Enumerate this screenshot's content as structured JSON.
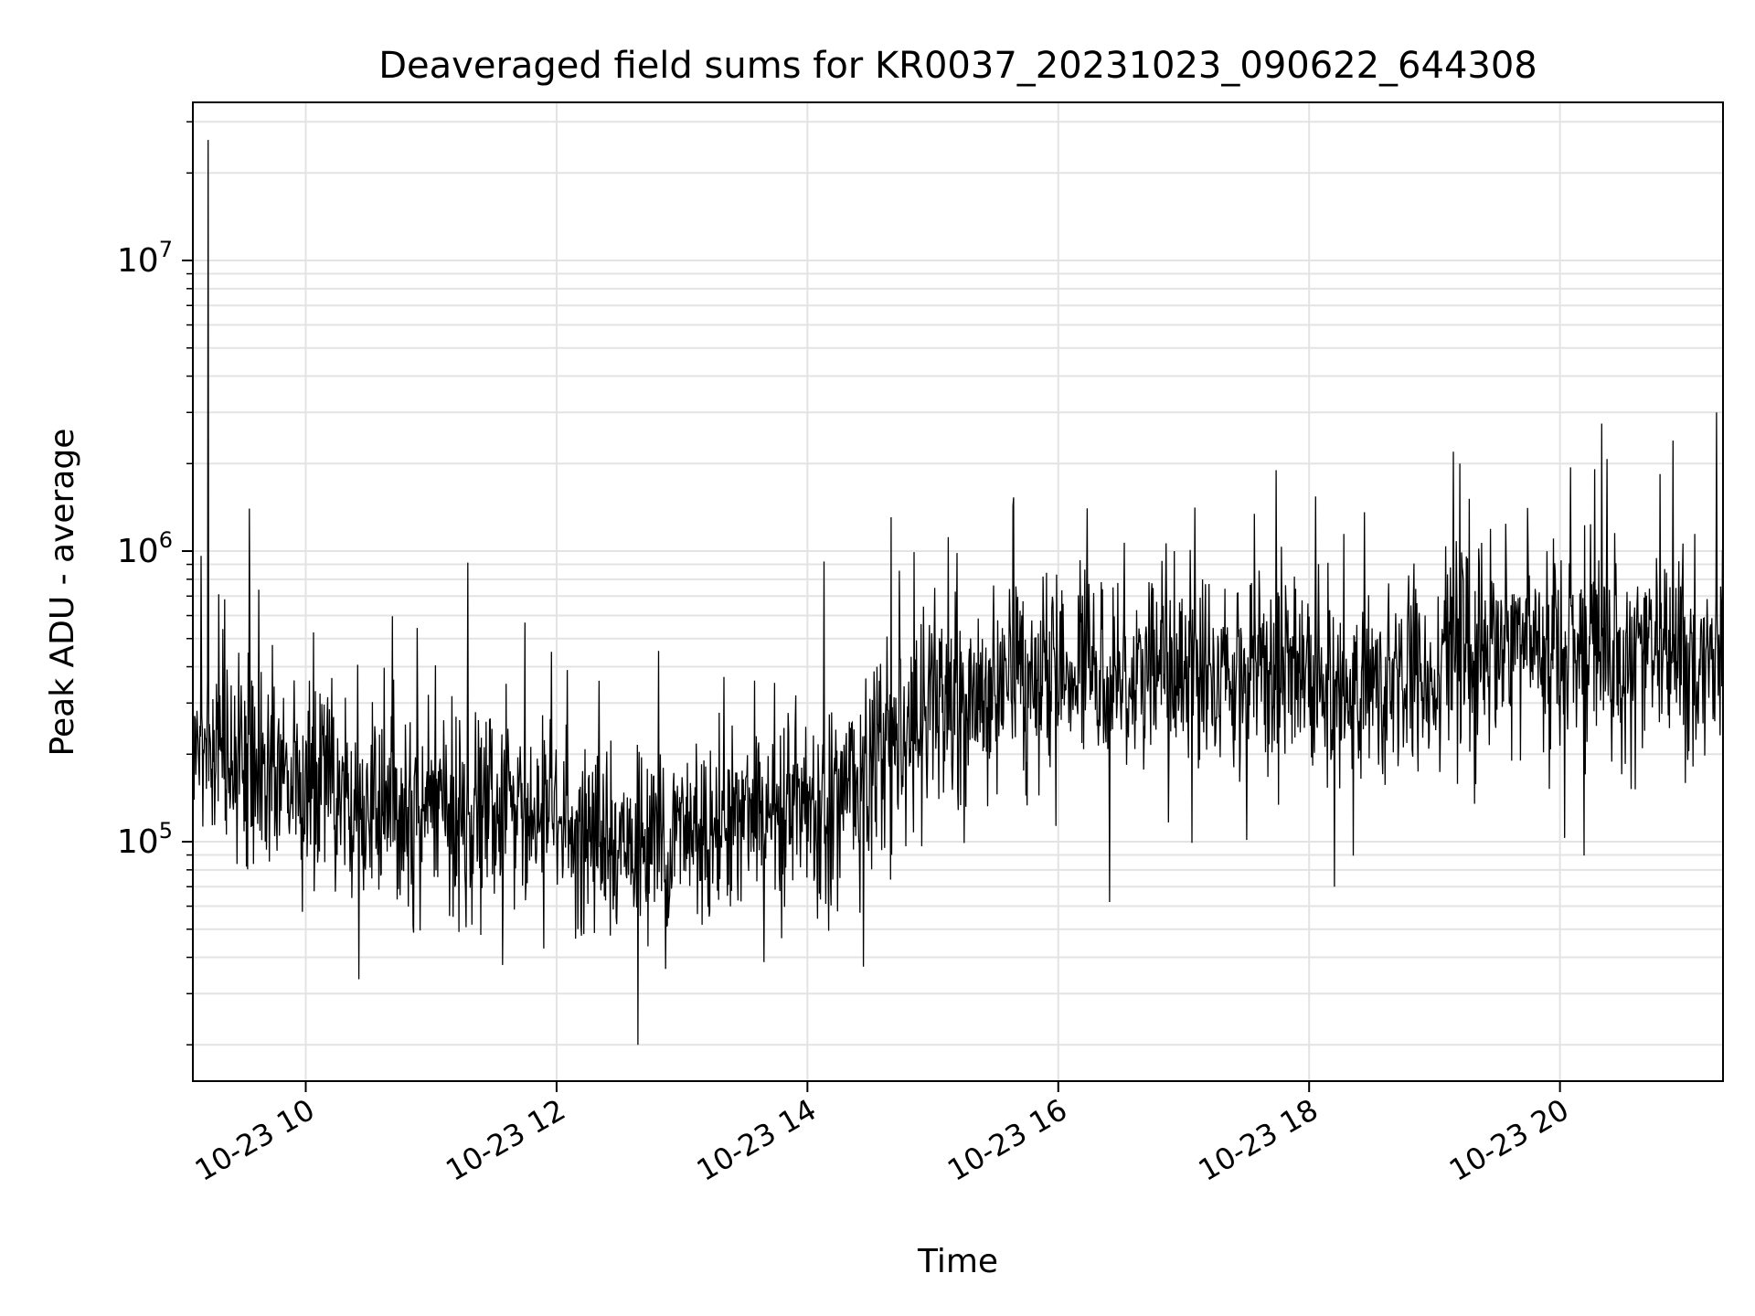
{
  "chart_data": {
    "type": "line",
    "title": "Deaveraged field sums for KR0037_20231023_090622_644308",
    "xlabel": "Time",
    "ylabel": "Peak ADU - average",
    "yscale": "log",
    "ylim": [
      15000,
      35000000
    ],
    "xlim_hours": [
      9.1,
      21.3
    ],
    "grid": true,
    "line_color": "#000000",
    "grid_color": "#e3e3e3",
    "x_ticks": [
      {
        "hour": 10,
        "label": "10-23 10"
      },
      {
        "hour": 12,
        "label": "10-23 12"
      },
      {
        "hour": 14,
        "label": "10-23 14"
      },
      {
        "hour": 16,
        "label": "10-23 16"
      },
      {
        "hour": 18,
        "label": "10-23 18"
      },
      {
        "hour": 20,
        "label": "10-23 20"
      }
    ],
    "y_ticks": [
      {
        "value": 100000,
        "base": "10",
        "exp": "5"
      },
      {
        "value": 1000000,
        "base": "10",
        "exp": "6"
      },
      {
        "value": 10000000,
        "base": "10",
        "exp": "7"
      }
    ],
    "series": [
      {
        "name": "field sums",
        "trend_hours": [
          9.1,
          10.0,
          11.0,
          12.0,
          12.7,
          13.5,
          14.2,
          15.0,
          16.0,
          17.0,
          18.0,
          18.2,
          19.0,
          19.5,
          20.0,
          21.0,
          21.3
        ],
        "trend_values": [
          230000,
          150000,
          130000,
          115000,
          95000,
          130000,
          140000,
          280000,
          400000,
          380000,
          420000,
          300000,
          420000,
          500000,
          470000,
          430000,
          480000
        ],
        "notable_points": [
          {
            "hour": 9.22,
            "value": 26000000
          },
          {
            "hour": 9.55,
            "value": 1400000
          },
          {
            "hour": 12.65,
            "value": 20000
          },
          {
            "hour": 18.2,
            "value": 70000
          },
          {
            "hour": 19.2,
            "value": 2000000
          },
          {
            "hour": 20.9,
            "value": 2400000
          },
          {
            "hour": 21.25,
            "value": 3000000
          }
        ]
      }
    ]
  }
}
